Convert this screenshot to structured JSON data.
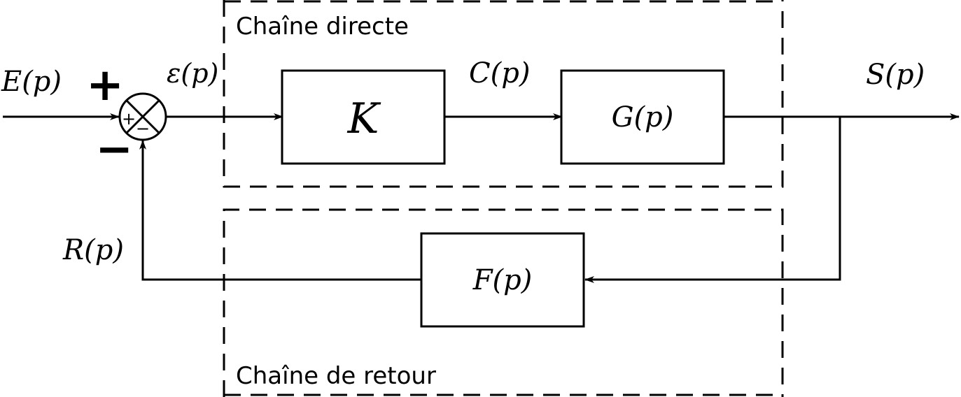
{
  "regions": {
    "forward_label": "Chaîne directe",
    "feedback_label": "Chaîne de retour"
  },
  "signals": {
    "input": "E(p)",
    "error": "ε(p)",
    "command": "C(p)",
    "output": "S(p)",
    "feedback": "R(p)"
  },
  "blocks": {
    "controller": "K",
    "plant": "G(p)",
    "sensor": "F(p)"
  },
  "summing_junction": {
    "plus_sign": "+",
    "minus_sign": "−",
    "inner_plus": "+",
    "inner_minus": "−"
  }
}
